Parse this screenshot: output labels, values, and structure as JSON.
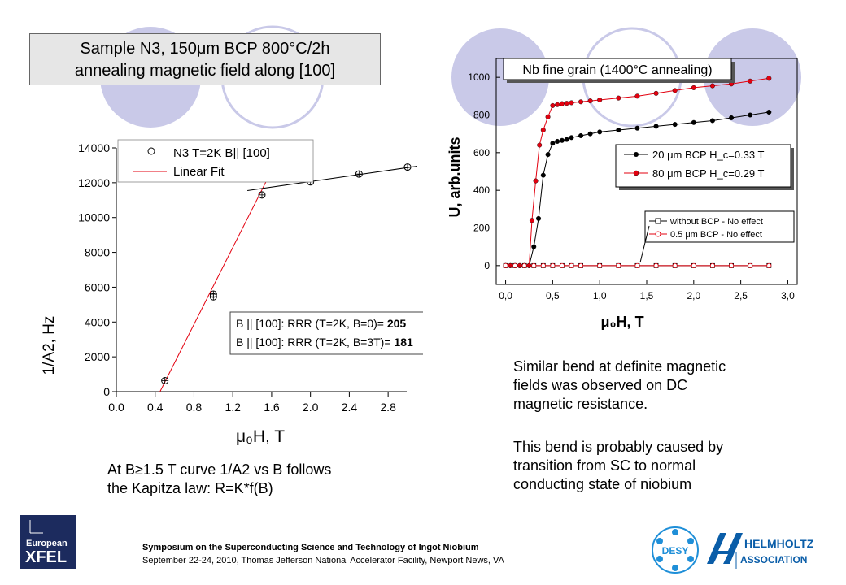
{
  "slide": {
    "title_line1": "Sample N3, 150μm BCP  800°C/2h",
    "title_line2": "annealing magnetic field along [100]",
    "left_caption_line1": "At B≥1.5 T curve 1/A2 vs B follows",
    "left_caption_line2": "the Kapitza law: R=K*f(B)",
    "right_para1_line1": "Similar bend at definite magnetic",
    "right_para1_line2": "fields was observed on DC",
    "right_para1_line3": "magnetic resistance.",
    "right_para2_line1": "This bend is probably caused by",
    "right_para2_line2": "transition from SC to normal",
    "right_para2_line3": "conducting state of niobium",
    "footer_line1": "Symposium on the Superconducting Science and Technology of Ingot Niobium",
    "footer_line2": "September 22-24, 2010, Thomas Jefferson National Accelerator Facility, Newport News, VA",
    "logo_xfel_line1": "European",
    "logo_xfel_line2": "XFEL",
    "logo_desy": "DESY",
    "logo_helmholtz_line1": "HELMHOLTZ",
    "logo_helmholtz_line2": "ASSOCIATION",
    "colors": {
      "red": "#e3000f",
      "xfel_navy": "#1c2b5e",
      "desy_blue": "#1f8fd8",
      "helmholtz_blue": "#0a5da8",
      "circle_lavender": "#c9c9e8"
    }
  },
  "chart_data": [
    {
      "type": "scatter",
      "xlabel": "μ₀H, T",
      "ylabel": "1/A2, Hz",
      "xlim": [
        0.0,
        3.0
      ],
      "ylim": [
        0,
        14000
      ],
      "x_ticks": [
        "0.0",
        "0.4",
        "0.8",
        "1.2",
        "1.6",
        "2.0",
        "2.4",
        "2.8"
      ],
      "y_ticks": [
        "0",
        "2000",
        "4000",
        "6000",
        "8000",
        "10000",
        "12000",
        "14000"
      ],
      "legend": [
        "N3 T=2K  B|| [100]",
        "Linear Fit"
      ],
      "annotation_line1": "B || [100]:   RRR (T=2K, B=0)= ",
      "annotation_value1": "205",
      "annotation_line2": "B || [100]:   RRR (T=2K, B=3T)= ",
      "annotation_value2": "181",
      "series": [
        {
          "name": "N3 T=2K  B|| [100]",
          "points": [
            [
              0.5,
              630
            ],
            [
              1.0,
              5600
            ],
            [
              1.0,
              5450
            ],
            [
              1.5,
              11300
            ],
            [
              2.0,
              12050
            ],
            [
              2.5,
              12500
            ],
            [
              3.0,
              12900
            ]
          ]
        }
      ],
      "fits": [
        {
          "name": "Linear Fit",
          "x": [
            0.45,
            1.6
          ],
          "y": [
            0,
            12700
          ]
        },
        {
          "x": [
            1.35,
            3.1
          ],
          "y": [
            11550,
            12950
          ]
        }
      ]
    },
    {
      "type": "line",
      "title": "Nb fine grain (1400°C annealing)",
      "xlabel": "μ₀H, T",
      "ylabel": "U, arb.units",
      "xlim": [
        -0.1,
        3.1
      ],
      "ylim": [
        -100,
        1100
      ],
      "x_ticks": [
        "0,0",
        "0,5",
        "1,0",
        "1,5",
        "2,0",
        "2,5",
        "3,0"
      ],
      "y_ticks": [
        "0",
        "200",
        "400",
        "600",
        "800",
        "1000"
      ],
      "series": [
        {
          "name": "20 μm BCP H_c=0.33 T",
          "color": "#000000",
          "marker": "filled-circle",
          "x": [
            0.0,
            0.05,
            0.1,
            0.15,
            0.2,
            0.25,
            0.3,
            0.35,
            0.4,
            0.45,
            0.5,
            0.55,
            0.6,
            0.65,
            0.7,
            0.8,
            0.9,
            1.0,
            1.2,
            1.4,
            1.6,
            1.8,
            2.0,
            2.2,
            2.4,
            2.6,
            2.8
          ],
          "y": [
            0,
            0,
            0,
            0,
            0,
            0,
            100,
            250,
            480,
            590,
            650,
            660,
            665,
            670,
            680,
            690,
            700,
            710,
            720,
            730,
            740,
            750,
            760,
            770,
            785,
            800,
            815
          ]
        },
        {
          "name": "80 μm BCP H_c=0.29 T",
          "color": "#e3000f",
          "marker": "filled-circle",
          "x": [
            0.0,
            0.05,
            0.1,
            0.15,
            0.2,
            0.25,
            0.28,
            0.32,
            0.36,
            0.4,
            0.45,
            0.5,
            0.55,
            0.6,
            0.65,
            0.7,
            0.8,
            0.9,
            1.0,
            1.2,
            1.4,
            1.6,
            1.8,
            2.0,
            2.2,
            2.4,
            2.6,
            2.8
          ],
          "y": [
            0,
            0,
            0,
            0,
            0,
            0,
            240,
            450,
            640,
            720,
            790,
            850,
            855,
            860,
            862,
            865,
            870,
            875,
            880,
            890,
            900,
            915,
            930,
            945,
            955,
            965,
            980,
            995
          ]
        },
        {
          "name": "without BCP - No effect",
          "color": "#000000",
          "marker": "open-square",
          "x": [
            0.0,
            0.1,
            0.2,
            0.3,
            0.4,
            0.5,
            0.6,
            0.7,
            0.8,
            1.0,
            1.2,
            1.4,
            1.6,
            1.8,
            2.0,
            2.2,
            2.4,
            2.6,
            2.8
          ],
          "y": [
            0,
            0,
            0,
            0,
            0,
            0,
            0,
            0,
            0,
            0,
            0,
            0,
            0,
            0,
            0,
            0,
            0,
            0,
            0
          ]
        },
        {
          "name": "0.5 μm BCP - No effect",
          "color": "#e3000f",
          "marker": "open-circle",
          "x": [
            0.0,
            0.1,
            0.2,
            0.3,
            0.4,
            0.5,
            0.6,
            0.7,
            0.8,
            1.0,
            1.2,
            1.4,
            1.6,
            1.8,
            2.0,
            2.2,
            2.4,
            2.6,
            2.8
          ],
          "y": [
            0,
            0,
            0,
            0,
            0,
            0,
            0,
            0,
            0,
            0,
            0,
            0,
            0,
            0,
            0,
            0,
            0,
            0,
            0
          ]
        }
      ],
      "legend_top": [
        "20 μm BCP H_c=0.33 T",
        "80 μm BCP H_c=0.29 T"
      ],
      "legend_bottom": [
        "without BCP - No effect",
        "0.5 μm BCP - No effect"
      ]
    }
  ]
}
